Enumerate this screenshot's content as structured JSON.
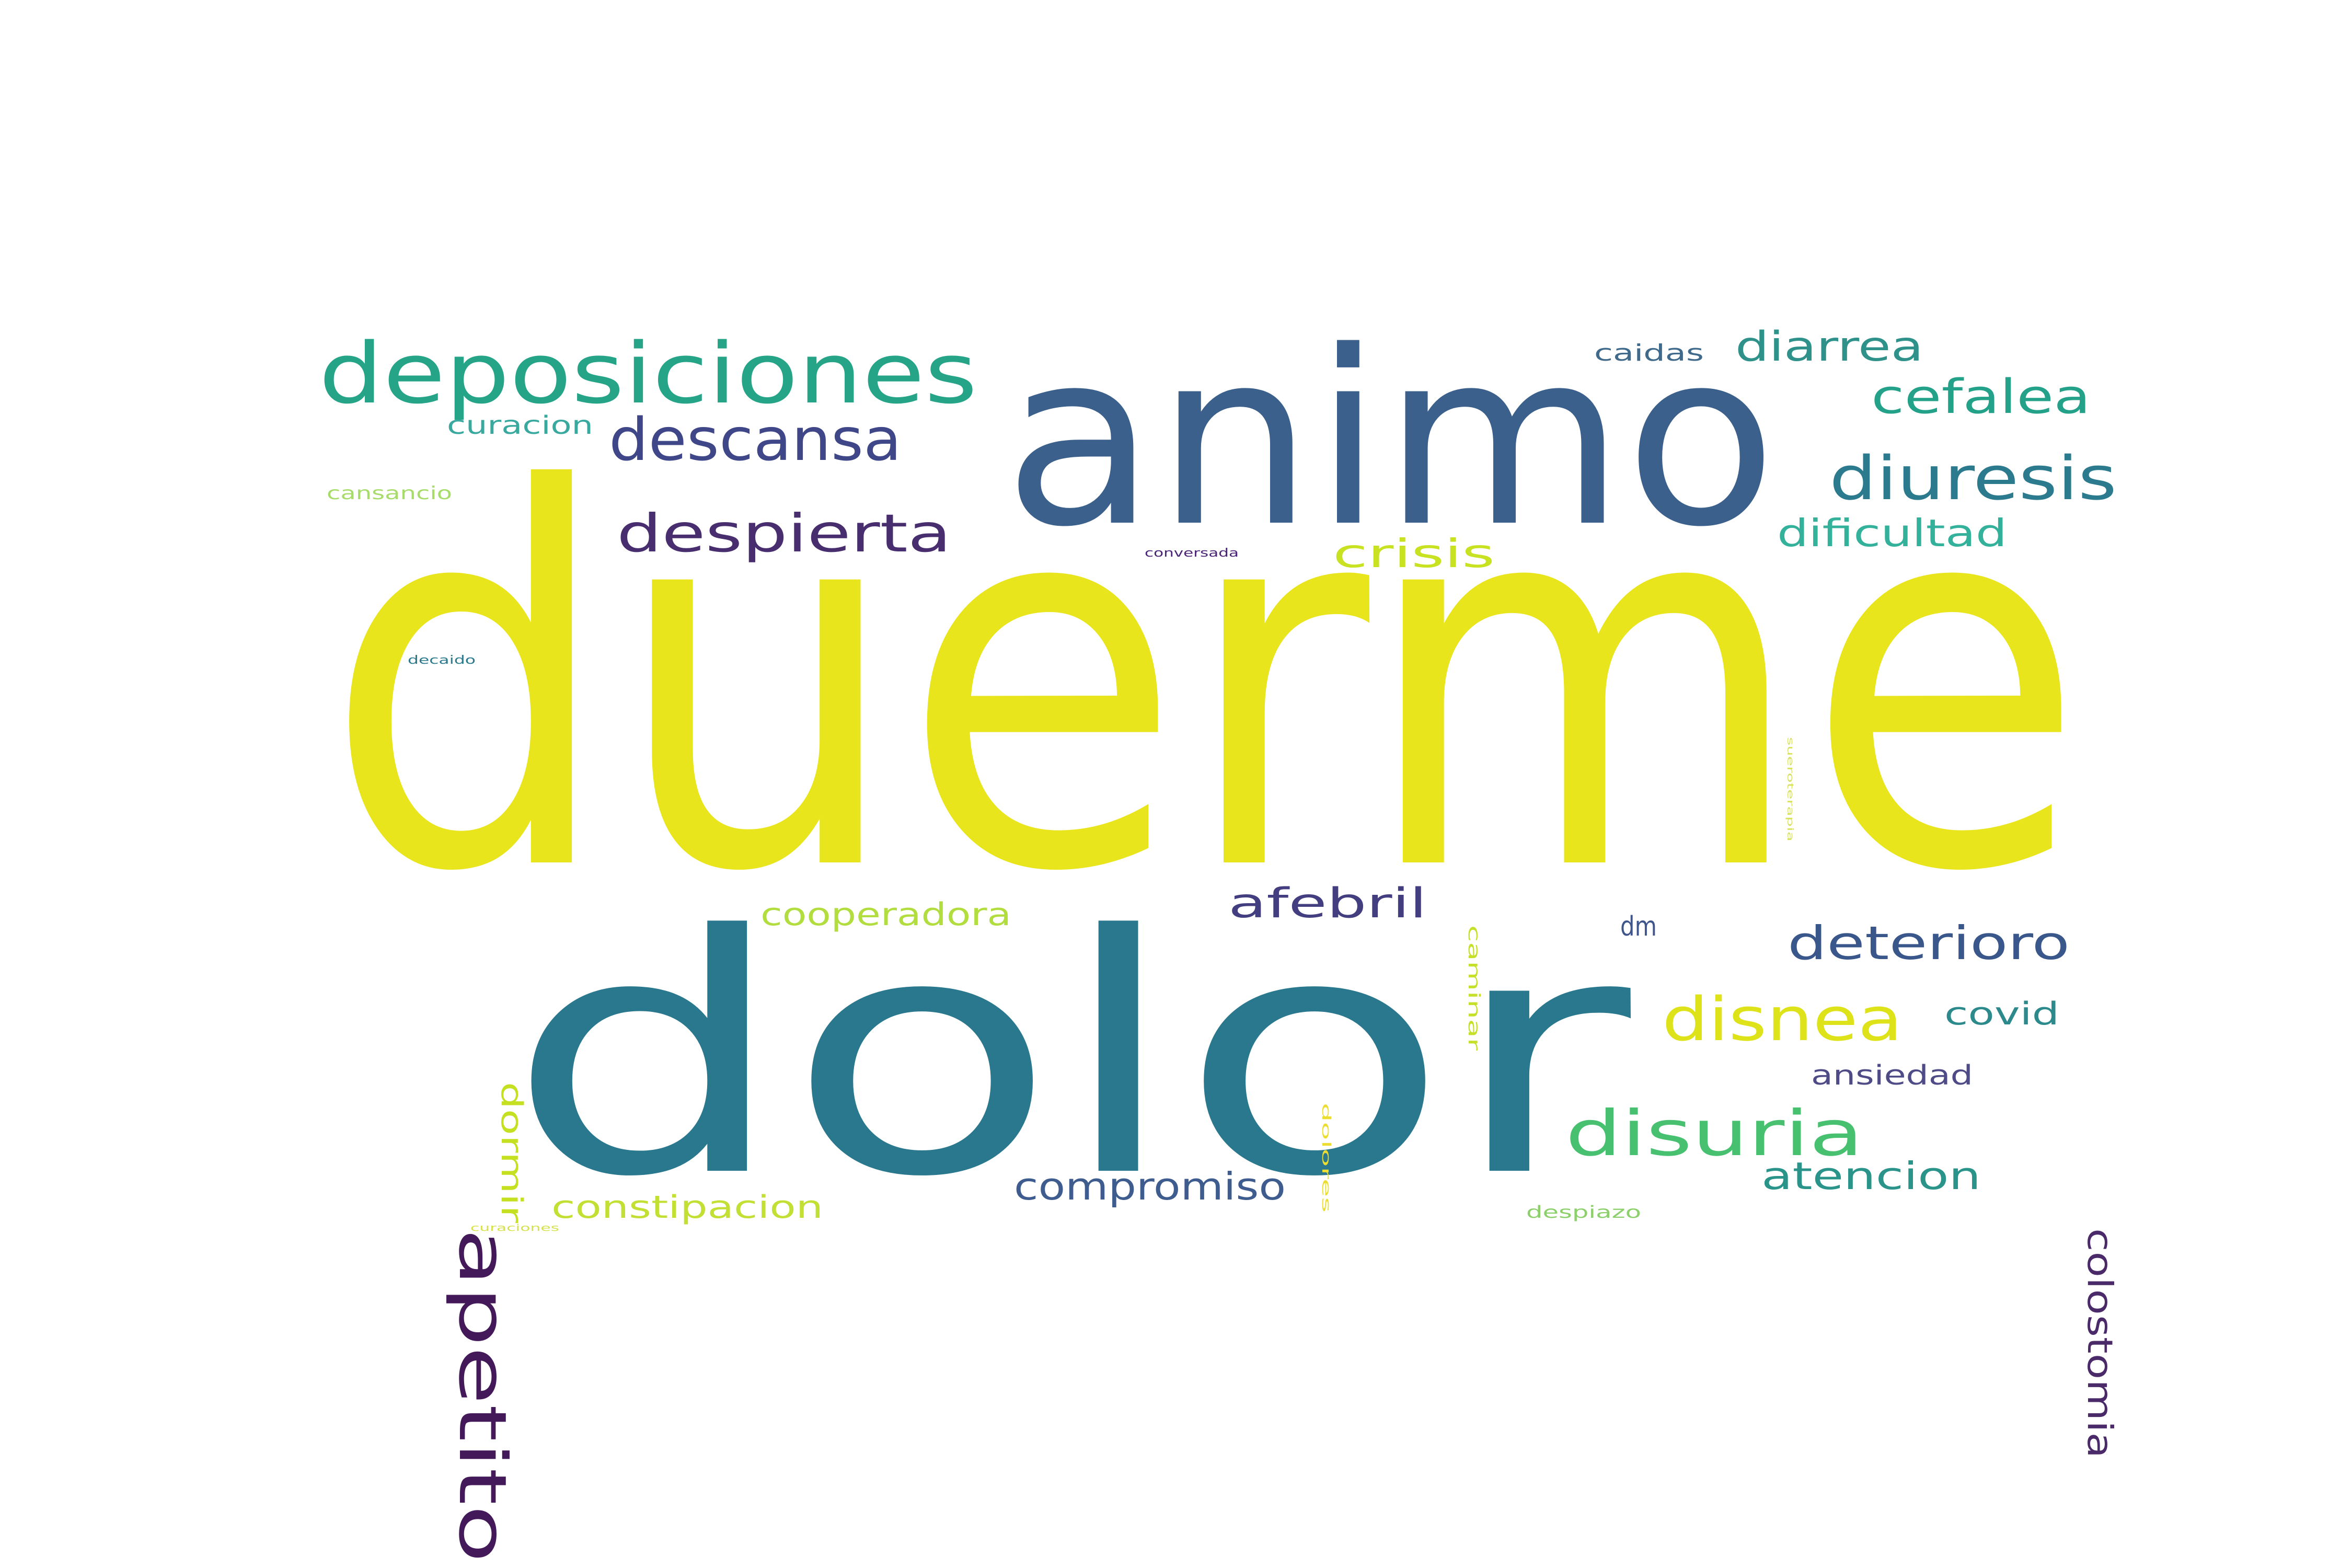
{
  "words": [
    {
      "text": "duerme",
      "color": "#e8e51c"
    },
    {
      "text": "dolor",
      "color": "#2a788e"
    },
    {
      "text": "animo",
      "color": "#3b608c"
    },
    {
      "text": "deposiciones",
      "color": "#26a487"
    },
    {
      "text": "apetito",
      "color": "#44195a"
    },
    {
      "text": "descansa",
      "color": "#3f4788"
    },
    {
      "text": "despierta",
      "color": "#482e6e"
    },
    {
      "text": "diuresis",
      "color": "#2c7a8e"
    },
    {
      "text": "disuria",
      "color": "#47c06f"
    },
    {
      "text": "disnea",
      "color": "#dde318"
    },
    {
      "text": "cefalea",
      "color": "#24a189"
    },
    {
      "text": "diarrea",
      "color": "#2e928b"
    },
    {
      "text": "deterioro",
      "color": "#3a578c"
    },
    {
      "text": "dificultad",
      "color": "#33b19a"
    },
    {
      "text": "crisis",
      "color": "#c8e121"
    },
    {
      "text": "afebril",
      "color": "#433e7f"
    },
    {
      "text": "compromiso",
      "color": "#3e5c8d"
    },
    {
      "text": "atencion",
      "color": "#2a948b"
    },
    {
      "text": "colostomia",
      "color": "#4b2a6a"
    },
    {
      "text": "constipacion",
      "color": "#c2df34"
    },
    {
      "text": "cooperadora",
      "color": "#b2dd3e"
    },
    {
      "text": "dormir",
      "color": "#c5e020"
    },
    {
      "text": "covid",
      "color": "#2c8a8c"
    },
    {
      "text": "ansiedad",
      "color": "#4e4b87"
    },
    {
      "text": "dm",
      "color": "#3f558b"
    },
    {
      "text": "curacion",
      "color": "#39a9a0"
    },
    {
      "text": "caidas",
      "color": "#3f6a8b"
    },
    {
      "text": "cansancio",
      "color": "#a7dc6a"
    },
    {
      "text": "caminar",
      "color": "#c6e02a"
    },
    {
      "text": "dolores",
      "color": "#ecde30"
    },
    {
      "text": "despiazo",
      "color": "#8cd06b"
    },
    {
      "text": "conversada",
      "color": "#4a2477"
    },
    {
      "text": "decaido",
      "color": "#2c7a8e"
    },
    {
      "text": "curaciones",
      "color": "#d6e14b"
    },
    {
      "text": "sueroterapia",
      "color": "#d7e25a"
    }
  ]
}
